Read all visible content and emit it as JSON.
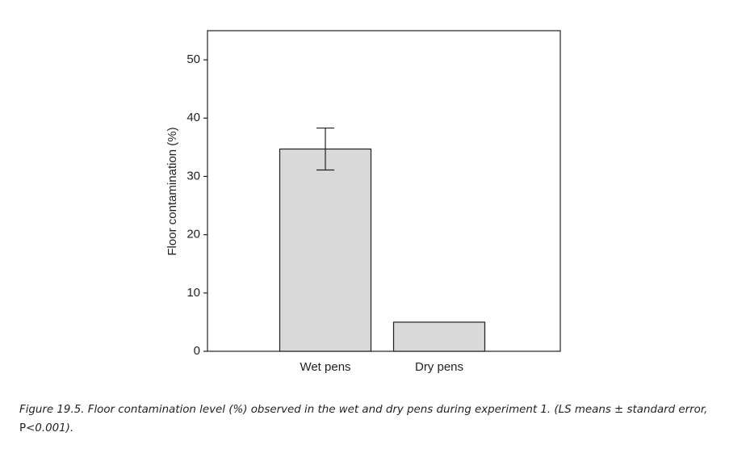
{
  "chart_data": {
    "type": "bar",
    "categories": [
      "Wet pens",
      "Dry pens"
    ],
    "values": [
      34.7,
      5.0
    ],
    "error": [
      3.6,
      0.0
    ],
    "title": "",
    "xlabel": "",
    "ylabel": "Floor contamination (%)",
    "ylim": [
      0,
      55
    ],
    "yticks": [
      0,
      10,
      20,
      30,
      40,
      50
    ],
    "grid": false,
    "legend": "none",
    "bar_color": "#d9d9d9",
    "edge_color": "#231f20"
  },
  "caption": {
    "part1": "Figure 19.5. Floor contamination level (%) observed in the wet and dry pens during experiment 1. (LS means ± standard error, ",
    "part2": "P",
    "part3": "<0.001)."
  }
}
